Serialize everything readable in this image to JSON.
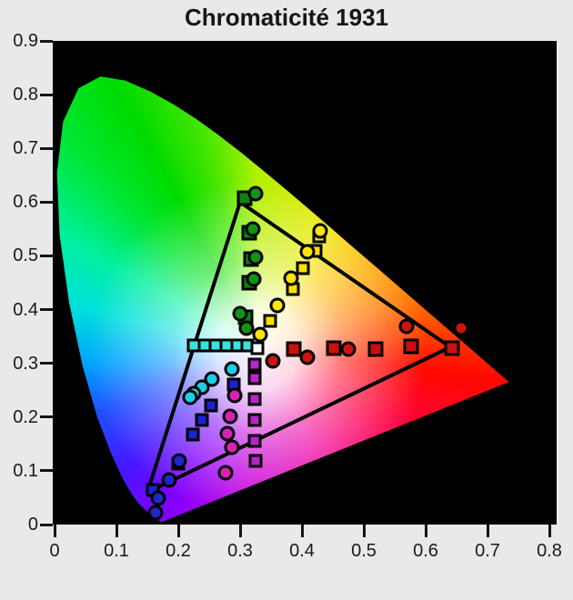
{
  "chart_data": {
    "type": "scatter",
    "title": "Chromaticité 1931",
    "xlabel": "",
    "ylabel": "",
    "xlim": [
      0,
      0.8
    ],
    "ylim": [
      0,
      0.9
    ],
    "grid": false,
    "legend": "none",
    "x_ticks": [
      "0",
      "0.1",
      "0.2",
      "0.3",
      "0.4",
      "0.5",
      "0.6",
      "0.7",
      "0.8"
    ],
    "y_ticks": [
      "0",
      "0.1",
      "0.2",
      "0.3",
      "0.4",
      "0.5",
      "0.6",
      "0.7",
      "0.8",
      "0.9"
    ],
    "plot_bg": "#000000",
    "page_bg": "#e9e8ea",
    "axis_color": "#141414",
    "gamut_triangle": {
      "name": "reference-gamut-triangle",
      "color": "#000000",
      "vertices": [
        [
          0.3,
          0.6
        ],
        [
          0.64,
          0.33
        ],
        [
          0.15,
          0.06
        ]
      ]
    },
    "white_point": [
      0.328,
      0.328
    ],
    "spectral_locus": [
      [
        0.1741,
        0.005
      ],
      [
        0.1714,
        0.0051
      ],
      [
        0.1644,
        0.0109
      ],
      [
        0.151,
        0.0227
      ],
      [
        0.1355,
        0.0399
      ],
      [
        0.1241,
        0.0578
      ],
      [
        0.1096,
        0.0868
      ],
      [
        0.0913,
        0.1327
      ],
      [
        0.0687,
        0.2007
      ],
      [
        0.0454,
        0.295
      ],
      [
        0.0235,
        0.4127
      ],
      [
        0.0082,
        0.5384
      ],
      [
        0.0039,
        0.6548
      ],
      [
        0.0139,
        0.7502
      ],
      [
        0.0389,
        0.812
      ],
      [
        0.0743,
        0.8338
      ],
      [
        0.1142,
        0.8262
      ],
      [
        0.1547,
        0.8059
      ],
      [
        0.1929,
        0.7816
      ],
      [
        0.2296,
        0.7543
      ],
      [
        0.2658,
        0.7243
      ],
      [
        0.3016,
        0.6923
      ],
      [
        0.3373,
        0.6588
      ],
      [
        0.3731,
        0.6245
      ],
      [
        0.4087,
        0.5896
      ],
      [
        0.4441,
        0.5547
      ],
      [
        0.4784,
        0.5203
      ],
      [
        0.5125,
        0.4866
      ],
      [
        0.5448,
        0.4544
      ],
      [
        0.5752,
        0.4242
      ],
      [
        0.6029,
        0.3965
      ],
      [
        0.627,
        0.3725
      ],
      [
        0.6482,
        0.3514
      ],
      [
        0.6658,
        0.334
      ],
      [
        0.6915,
        0.3083
      ],
      [
        0.714,
        0.2859
      ],
      [
        0.726,
        0.274
      ],
      [
        0.7347,
        0.2653
      ]
    ],
    "gamut_fill": {
      "hue_stops": [
        [
          0,
          "#b4f000"
        ],
        [
          30,
          "#f0e800"
        ],
        [
          52,
          "#ffb400"
        ],
        [
          72,
          "#ff7800"
        ],
        [
          86,
          "#ff3c00"
        ],
        [
          97,
          "#ff0a00"
        ],
        [
          120,
          "#ff0046"
        ],
        [
          150,
          "#f000a0"
        ],
        [
          185,
          "#c800dc"
        ],
        [
          209,
          "#8200ff"
        ],
        [
          228,
          "#4618ff"
        ],
        [
          248,
          "#1e50ff"
        ],
        [
          264,
          "#00a0ff"
        ],
        [
          283,
          "#00e0dc"
        ],
        [
          300,
          "#00f0a0"
        ],
        [
          318,
          "#00e632"
        ],
        [
          332,
          "#00dc00"
        ],
        [
          346,
          "#46e600"
        ],
        [
          360,
          "#b4f000"
        ]
      ],
      "white_glow": [
        [
          0,
          0.96
        ],
        [
          45,
          0.85
        ],
        [
          95,
          0.45
        ],
        [
          185,
          0
        ]
      ]
    },
    "series": [
      {
        "name": "cyan-reference",
        "marker": "square",
        "size": 15,
        "color": "#35e3e0",
        "points": [
          [
            0.225,
            0.333
          ],
          [
            0.243,
            0.333
          ],
          [
            0.26,
            0.333
          ],
          [
            0.278,
            0.333
          ],
          [
            0.296,
            0.333
          ],
          [
            0.312,
            0.333
          ]
        ]
      },
      {
        "name": "cyan-measured",
        "marker": "circle",
        "size": 17,
        "color": "#19cfe8",
        "points": [
          [
            0.287,
            0.289
          ],
          [
            0.254,
            0.27
          ],
          [
            0.238,
            0.255
          ],
          [
            0.225,
            0.244
          ],
          [
            0.219,
            0.236
          ]
        ]
      },
      {
        "name": "green-reference",
        "marker": "square",
        "size": 17,
        "color": "#0d8312",
        "points": [
          [
            0.307,
            0.608
          ],
          [
            0.315,
            0.543
          ],
          [
            0.318,
            0.494
          ],
          [
            0.315,
            0.45
          ],
          [
            0.309,
            0.385
          ]
        ]
      },
      {
        "name": "green-measured",
        "marker": "circle",
        "size": 17,
        "color": "#0f9414",
        "points": [
          [
            0.325,
            0.616
          ],
          [
            0.321,
            0.55
          ],
          [
            0.325,
            0.497
          ],
          [
            0.322,
            0.457
          ],
          [
            0.3,
            0.392
          ],
          [
            0.31,
            0.365
          ]
        ]
      },
      {
        "name": "yellow-reference",
        "marker": "square",
        "size": 15,
        "color": "#ffdf00",
        "points": [
          [
            0.428,
            0.537
          ],
          [
            0.422,
            0.509
          ],
          [
            0.401,
            0.477
          ],
          [
            0.385,
            0.438
          ],
          [
            0.349,
            0.379
          ]
        ]
      },
      {
        "name": "yellow-measured",
        "marker": "circle",
        "size": 17,
        "color": "#ffe408",
        "points": [
          [
            0.429,
            0.547
          ],
          [
            0.409,
            0.508
          ],
          [
            0.382,
            0.458
          ],
          [
            0.36,
            0.407
          ],
          [
            0.332,
            0.353
          ]
        ]
      },
      {
        "name": "blue-reference",
        "marker": "square",
        "size": 15,
        "color": "#1c22cf",
        "points": [
          [
            0.29,
            0.261
          ],
          [
            0.253,
            0.221
          ],
          [
            0.238,
            0.194
          ],
          [
            0.224,
            0.168
          ],
          [
            0.2,
            0.114
          ],
          [
            0.159,
            0.065
          ]
        ]
      },
      {
        "name": "blue-measured",
        "marker": "circle",
        "size": 17,
        "color": "#2025c4",
        "points": [
          [
            0.201,
            0.119
          ],
          [
            0.185,
            0.083
          ],
          [
            0.168,
            0.049
          ],
          [
            0.163,
            0.022
          ]
        ]
      },
      {
        "name": "magenta-reference",
        "marker": "square",
        "size": 15,
        "color": "#b625c9",
        "points": [
          [
            0.324,
            0.297
          ],
          [
            0.324,
            0.272
          ],
          [
            0.324,
            0.233
          ],
          [
            0.324,
            0.195
          ],
          [
            0.324,
            0.156
          ],
          [
            0.325,
            0.119
          ]
        ]
      },
      {
        "name": "magenta-measured",
        "marker": "circle",
        "size": 17,
        "color": "#d623b4",
        "points": [
          [
            0.291,
            0.241
          ],
          [
            0.284,
            0.202
          ],
          [
            0.279,
            0.17
          ],
          [
            0.287,
            0.144
          ],
          [
            0.276,
            0.097
          ]
        ]
      },
      {
        "name": "red-reference",
        "marker": "square",
        "size": 17,
        "color": "#c8100e",
        "points": [
          [
            0.387,
            0.326
          ],
          [
            0.451,
            0.329
          ],
          [
            0.519,
            0.326
          ],
          [
            0.576,
            0.331
          ],
          [
            0.643,
            0.329
          ]
        ]
      },
      {
        "name": "red-measured",
        "marker": "circle",
        "size": 17,
        "color": "#cc150c",
        "points": [
          [
            0.353,
            0.304
          ],
          [
            0.409,
            0.312
          ],
          [
            0.475,
            0.326
          ],
          [
            0.569,
            0.368
          ],
          [
            0.657,
            0.365
          ]
        ]
      },
      {
        "name": "white-point-measured",
        "marker": "square",
        "size": 15,
        "color": "#ffffff",
        "points": [
          [
            0.328,
            0.328
          ]
        ]
      }
    ]
  }
}
